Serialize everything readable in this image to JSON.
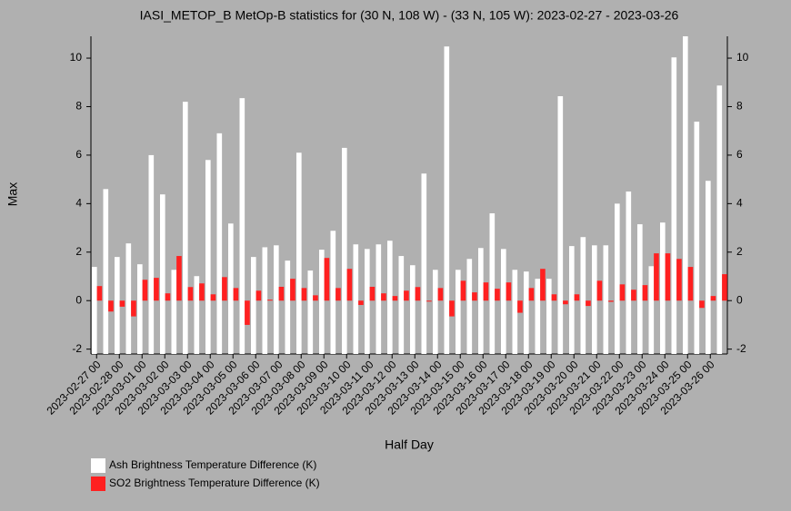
{
  "chart_data": {
    "type": "bar",
    "title": "IASI_METOP_B MetOp-B statistics for (30 N, 108 W) - (33 N, 105 W): 2023-02-27 - 2023-03-26",
    "x_label": "Half Day",
    "y_label": "Max",
    "categories": [
      "2023-02-27 00",
      null,
      "2023-02-28 00",
      null,
      "2023-03-01 00",
      null,
      "2023-03-02 00",
      null,
      "2023-03-03 00",
      null,
      "2023-03-04 00",
      null,
      "2023-03-05 00",
      null,
      "2023-03-06 00",
      null,
      "2023-03-07 00",
      null,
      "2023-03-08 00",
      null,
      "2023-03-09 00",
      null,
      "2023-03-10 00",
      null,
      "2023-03-11 00",
      null,
      "2023-03-12 00",
      null,
      "2023-03-13 00",
      null,
      "2023-03-14 00",
      null,
      "2023-03-15 00",
      null,
      "2023-03-16 00",
      null,
      "2023-03-17 00",
      null,
      "2023-03-18 00",
      null,
      "2023-03-19 00",
      null,
      "2023-03-20 00",
      null,
      "2023-03-21 00",
      null,
      "2023-03-22 00",
      null,
      "2023-03-23 00",
      null,
      "2023-03-24 00",
      null,
      "2023-03-25 00",
      null,
      "2023-03-26 00",
      null
    ],
    "series": [
      {
        "name": "Ash Brightness Temperature Difference (K)",
        "color": "#ffffff",
        "values": [
          1.39,
          4.6,
          1.8,
          2.36,
          1.5,
          6.0,
          4.38,
          1.27,
          8.2,
          1.01,
          5.8,
          6.9,
          3.18,
          8.35,
          1.8,
          2.2,
          2.28,
          1.65,
          6.1,
          1.24,
          2.1,
          2.88,
          6.3,
          2.32,
          2.13,
          2.32,
          2.47,
          1.84,
          1.46,
          5.24,
          1.27,
          10.48,
          1.27,
          1.72,
          2.17,
          3.6,
          2.13,
          1.27,
          1.2,
          0.9,
          0.9,
          8.43,
          2.25,
          2.62,
          2.28,
          2.28,
          4.0,
          4.5,
          3.15,
          1.42,
          3.22,
          10.03,
          10.9,
          7.38,
          4.94,
          8.87
        ]
      },
      {
        "name": "SO2 Brightness Temperature Difference (K)",
        "color": "#ff2020",
        "values": [
          0.6,
          -0.45,
          -0.25,
          -0.65,
          0.86,
          0.94,
          0.3,
          1.84,
          0.56,
          0.71,
          0.26,
          0.97,
          0.52,
          -1.0,
          0.41,
          0.04,
          0.57,
          0.9,
          0.52,
          0.22,
          1.76,
          0.52,
          1.31,
          -0.18,
          0.57,
          0.3,
          0.19,
          0.41,
          0.56,
          -0.04,
          0.52,
          -0.65,
          0.82,
          0.34,
          0.75,
          0.49,
          0.75,
          -0.5,
          0.52,
          1.31,
          0.26,
          -0.15,
          0.26,
          -0.22,
          0.82,
          -0.05,
          0.67,
          0.45,
          0.64,
          1.95,
          1.95,
          1.72,
          1.39,
          -0.3,
          0.19,
          1.09
        ]
      }
    ],
    "ylim": [
      -2.2,
      10.9
    ],
    "yticks": [
      -2,
      0,
      2,
      4,
      6,
      8,
      10
    ],
    "grid": false,
    "legend": "bottom-left"
  }
}
